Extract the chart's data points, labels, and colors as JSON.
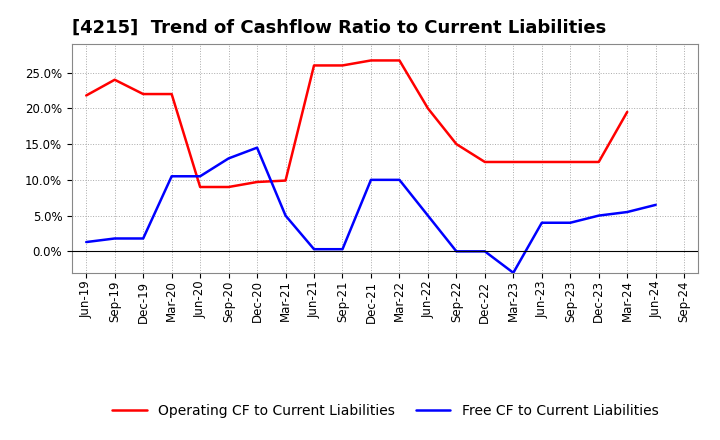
{
  "title": "[4215]  Trend of Cashflow Ratio to Current Liabilities",
  "x_labels": [
    "Jun-19",
    "Sep-19",
    "Dec-19",
    "Mar-20",
    "Jun-20",
    "Sep-20",
    "Dec-20",
    "Mar-21",
    "Jun-21",
    "Sep-21",
    "Dec-21",
    "Mar-22",
    "Jun-22",
    "Sep-22",
    "Dec-22",
    "Mar-23",
    "Jun-23",
    "Sep-23",
    "Dec-23",
    "Mar-24",
    "Jun-24",
    "Sep-24"
  ],
  "operating_color": "#ff0000",
  "free_color": "#0000ff",
  "ylim": [
    -0.03,
    0.29
  ],
  "yticks": [
    0.0,
    0.05,
    0.1,
    0.15,
    0.2,
    0.25
  ],
  "background_color": "#ffffff",
  "plot_bg_color": "#ffffff",
  "grid_color": "#aaaaaa",
  "title_fontsize": 13,
  "legend_fontsize": 10,
  "tick_fontsize": 8.5
}
